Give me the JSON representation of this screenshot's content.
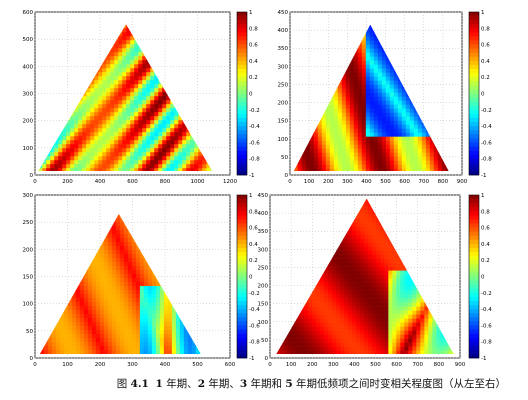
{
  "chart_data": [
    {
      "type": "heatmap",
      "title": "",
      "xlabel": "",
      "ylabel": "",
      "xlim": [
        0,
        1200
      ],
      "ylim": [
        0,
        600
      ],
      "xticks": [
        "0",
        "200",
        "400",
        "600",
        "800",
        "1000",
        "1200"
      ],
      "yticks": [
        "0",
        "100",
        "200",
        "300",
        "400",
        "500",
        "600"
      ],
      "colorbar": {
        "range": [
          -1,
          1
        ],
        "ticks": [
          "1",
          "0.8",
          "0.6",
          "0.4",
          "0.2",
          "0",
          "-0.2",
          "-0.4",
          "-0.6",
          "-0.8",
          "-1"
        ]
      },
      "cone": {
        "left": 20,
        "apex_x": 560,
        "apex_y": 555,
        "right": 1090
      }
    },
    {
      "type": "heatmap",
      "title": "",
      "xlabel": "",
      "ylabel": "",
      "xlim": [
        0,
        900
      ],
      "ylim": [
        0,
        450
      ],
      "xticks": [
        "0",
        "100",
        "200",
        "300",
        "400",
        "500",
        "600",
        "700",
        "800",
        "900"
      ],
      "yticks": [
        "0",
        "50",
        "100",
        "150",
        "200",
        "250",
        "300",
        "350",
        "400",
        "450"
      ],
      "colorbar": {
        "range": [
          -1,
          1
        ],
        "ticks": [
          "1",
          "0.8",
          "0.6",
          "0.4",
          "0.2",
          "0",
          "-0.2",
          "-0.4",
          "-0.6",
          "-0.8",
          "-1"
        ]
      },
      "cone": {
        "left": 20,
        "apex_x": 420,
        "apex_y": 415,
        "right": 830
      }
    },
    {
      "type": "heatmap",
      "title": "",
      "xlabel": "",
      "ylabel": "",
      "xlim": [
        0,
        600
      ],
      "ylim": [
        0,
        300
      ],
      "xticks": [
        "0",
        "100",
        "200",
        "300",
        "400",
        "500",
        "600"
      ],
      "yticks": [
        "0",
        "50",
        "100",
        "150",
        "200",
        "250",
        "300"
      ],
      "colorbar": {
        "range": [
          -1,
          1
        ],
        "ticks": [
          "1",
          "0.8",
          "0.6",
          "0.4",
          "0.2",
          "0",
          "-0.2",
          "-0.4",
          "-0.6",
          "-0.8",
          "-1"
        ]
      },
      "cone": {
        "left": 15,
        "apex_x": 258,
        "apex_y": 265,
        "right": 510
      }
    },
    {
      "type": "heatmap",
      "title": "",
      "xlabel": "",
      "ylabel": "",
      "xlim": [
        0,
        900
      ],
      "ylim": [
        0,
        450
      ],
      "xticks": [
        "0",
        "100",
        "200",
        "300",
        "400",
        "500",
        "600",
        "700",
        "800",
        "900"
      ],
      "yticks": [
        "0",
        "50",
        "100",
        "150",
        "200",
        "250",
        "300",
        "350",
        "400",
        "450"
      ],
      "colorbar": {
        "range": [
          -1,
          1
        ],
        "ticks": [
          "1",
          "0.8",
          "0.6",
          "0.4",
          "0.2",
          "0",
          "-0.2",
          "-0.4",
          "-0.6",
          "-0.8",
          "-1"
        ]
      },
      "cone": {
        "left": 30,
        "apex_x": 458,
        "apex_y": 440,
        "right": 870
      }
    }
  ],
  "caption": {
    "prefix": "图",
    "number": "4.1",
    "y1": "1",
    "t1": "年期、",
    "y2": "2",
    "t2": "年期、",
    "y3": "3",
    "t3": "年期和",
    "y5": "5",
    "t4": "年期低频项之间时变相关程度图（从左至右）"
  }
}
